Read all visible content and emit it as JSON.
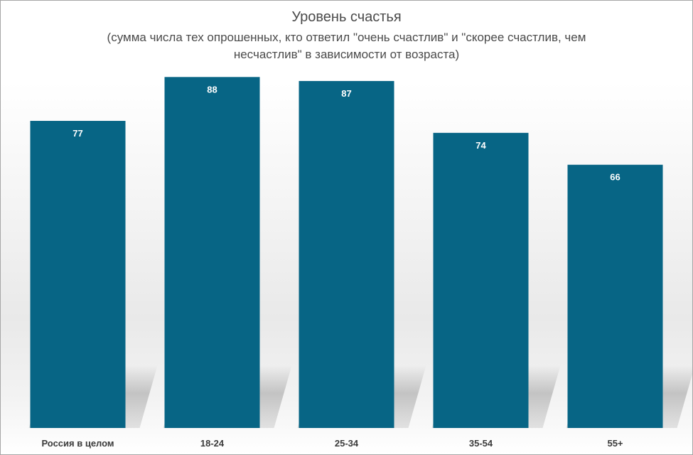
{
  "chart_data": {
    "type": "bar",
    "title": "Уровень счастья",
    "subtitle_line1": "(сумма числа тех опрошенных, кто ответил \"очень счастлив\" и \"скорее счастлив, чем",
    "subtitle_line2": "несчастлив\" в зависимости от возраста)",
    "categories": [
      "Россия в целом",
      "18-24",
      "25-34",
      "35-54",
      "55+"
    ],
    "values": [
      77,
      88,
      87,
      74,
      66
    ],
    "data_labels": [
      "77",
      "88",
      "87",
      "74",
      "66"
    ],
    "ylim": [
      0,
      100
    ],
    "grid": false,
    "legend": "none",
    "xlabel": "",
    "ylabel": "",
    "bar_color": "#076585"
  }
}
